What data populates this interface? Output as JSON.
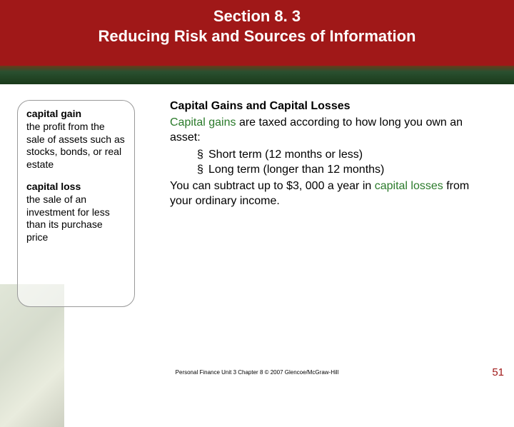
{
  "header": {
    "line1": "Section 8. 3",
    "line2": "Reducing Risk and Sources of Information"
  },
  "sidebar": {
    "terms": [
      {
        "title": "capital gain",
        "def": "the profit from the sale of assets such as stocks, bonds, or real estate"
      },
      {
        "title": "capital loss",
        "def": "the sale of an investment for less than its purchase price"
      }
    ]
  },
  "main": {
    "heading": "Capital Gains and Capital Losses",
    "intro_prefix": "Capital gains",
    "intro_rest": " are taxed according to how long you own an asset:",
    "bullets": [
      "Short term (12 months or less)",
      "Long term (longer than 12 months)"
    ],
    "closing_pre": "You can subtract up to $3, 000 a year in ",
    "closing_green": "capital losses",
    "closing_post": " from your ordinary income."
  },
  "footer": {
    "credit": "Personal Finance   Unit 3   Chapter 8   © 2007 Glencoe/McGraw-Hill",
    "page": "51"
  },
  "colors": {
    "header_bg": "#a01818",
    "accent_green": "#2a7a2a",
    "page_number": "#a01818"
  }
}
